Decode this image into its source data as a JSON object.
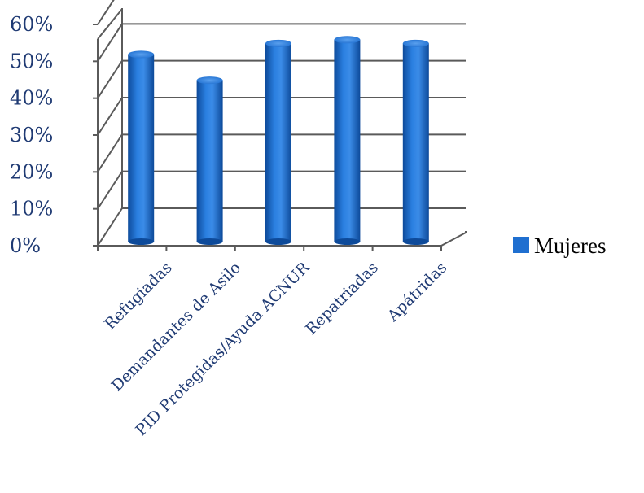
{
  "chart_data": {
    "type": "bar",
    "categories": [
      "Refugiadas",
      "Demandantes de Asilo",
      "PID Protegidas/Ayuda ACNUR",
      "Repatriadas",
      "Apátridas"
    ],
    "series": [
      {
        "name": "Mujeres",
        "values": [
          47,
          40,
          50,
          51,
          50
        ]
      }
    ],
    "yticks": [
      "0%",
      "10%",
      "20%",
      "30%",
      "40%",
      "50%",
      "60%"
    ],
    "ylim": [
      0,
      60
    ],
    "grid": true,
    "legend_position": "right",
    "three_d": true
  },
  "colors": {
    "bar_fill": "#1f6fd0",
    "bar_dark": "#0d4a9a",
    "bar_light": "#5aa0ee",
    "grid": "#5a5a5a",
    "tick_text": "#1f3a73",
    "legend_swatch": "#1f6fd0"
  }
}
